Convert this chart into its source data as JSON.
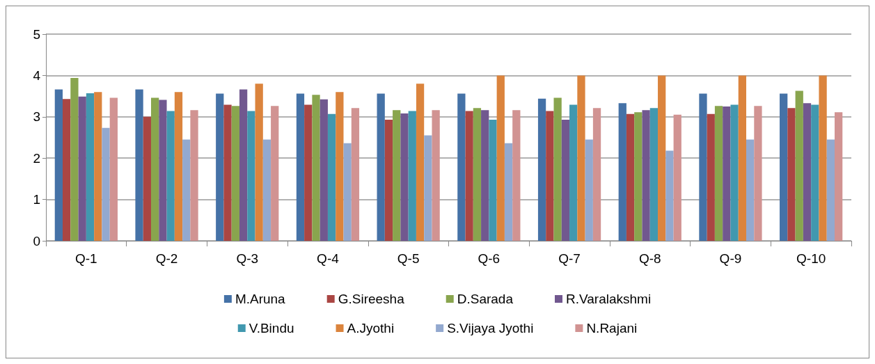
{
  "chart_data": {
    "type": "bar",
    "categories": [
      "Q-1",
      "Q-2",
      "Q-3",
      "Q-4",
      "Q-5",
      "Q-6",
      "Q-7",
      "Q-8",
      "Q-9",
      "Q-10"
    ],
    "series": [
      {
        "name": "M.Aruna",
        "color": "#4572a7",
        "values": [
          3.66,
          3.66,
          3.56,
          3.56,
          3.56,
          3.56,
          3.44,
          3.33,
          3.56,
          3.56
        ]
      },
      {
        "name": "G.Sireesha",
        "color": "#aa4643",
        "values": [
          3.43,
          3.0,
          3.29,
          3.29,
          2.93,
          3.14,
          3.14,
          3.07,
          3.07,
          3.21
        ]
      },
      {
        "name": "D.Sarada",
        "color": "#89a54e",
        "values": [
          3.94,
          3.46,
          3.26,
          3.53,
          3.16,
          3.21,
          3.46,
          3.11,
          3.26,
          3.63
        ]
      },
      {
        "name": "R.Varalakshmi",
        "color": "#71588f",
        "values": [
          3.49,
          3.41,
          3.66,
          3.42,
          3.08,
          3.16,
          2.93,
          3.16,
          3.25,
          3.33
        ]
      },
      {
        "name": "V.Bindu",
        "color": "#4198af",
        "values": [
          3.57,
          3.14,
          3.14,
          3.07,
          3.14,
          2.93,
          3.29,
          3.21,
          3.29,
          3.29
        ]
      },
      {
        "name": "A.Jyothi",
        "color": "#db843d",
        "values": [
          3.6,
          3.6,
          3.8,
          3.6,
          3.8,
          4,
          4,
          4,
          4,
          4
        ]
      },
      {
        "name": "S.Vijaya Jyothi",
        "color": "#93a9cf",
        "values": [
          2.73,
          2.45,
          2.45,
          2.36,
          2.55,
          2.36,
          2.45,
          2.18,
          2.45,
          2.45
        ]
      },
      {
        "name": "N.Rajani",
        "color": "#d19392",
        "values": [
          3.46,
          3.16,
          3.26,
          3.21,
          3.16,
          3.16,
          3.21,
          3.05,
          3.26,
          3.11
        ]
      }
    ],
    "ylim": [
      0,
      5
    ],
    "yticks": [
      0,
      1,
      2,
      3,
      4,
      5
    ],
    "grid": "y",
    "legend": "bottom"
  }
}
